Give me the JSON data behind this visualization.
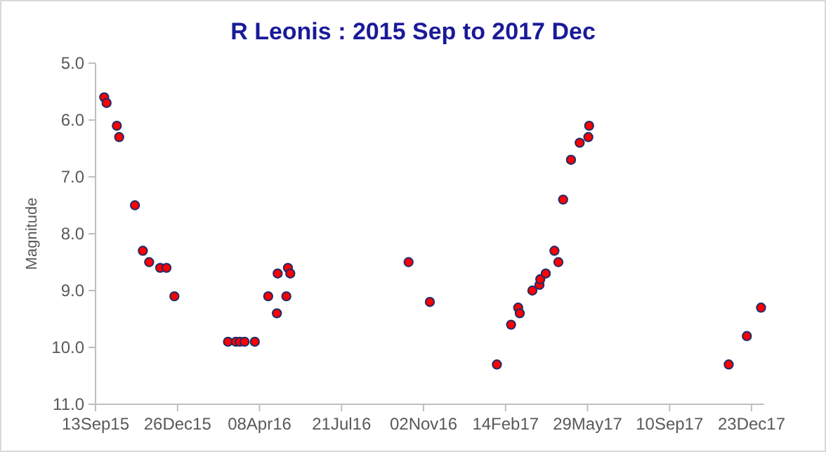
{
  "chart_data": {
    "type": "scatter",
    "title": "R Leonis : 2015 Sep to 2017 Dec",
    "ylabel": "Magnitude",
    "marker": "circle",
    "grid": false,
    "x": [
      "2015-09-24",
      "2015-09-27",
      "2015-10-10",
      "2015-10-13",
      "2015-11-02",
      "2015-11-12",
      "2015-11-20",
      "2015-12-04",
      "2015-12-12",
      "2015-12-22",
      "2016-02-28",
      "2016-03-09",
      "2016-03-14",
      "2016-03-20",
      "2016-04-02",
      "2016-04-19",
      "2016-04-30",
      "2016-05-01",
      "2016-05-12",
      "2016-05-14",
      "2016-05-17",
      "2016-10-14",
      "2016-11-10",
      "2017-02-03",
      "2017-02-21",
      "2017-03-02",
      "2017-03-04",
      "2017-03-20",
      "2017-03-29",
      "2017-03-30",
      "2017-04-06",
      "2017-04-17",
      "2017-04-22",
      "2017-04-28",
      "2017-05-08",
      "2017-05-19",
      "2017-05-30",
      "2017-05-31",
      "2017-11-24",
      "2017-12-17",
      "2018-01-04"
    ],
    "series": [
      {
        "color": "#ff0000",
        "values": [
          5.6,
          5.7,
          6.1,
          6.3,
          7.5,
          8.3,
          8.5,
          8.6,
          8.6,
          9.1,
          9.9,
          9.9,
          9.9,
          9.9,
          9.9,
          9.1,
          9.4,
          8.7,
          9.1,
          8.6,
          8.7,
          8.5,
          9.2,
          10.3,
          9.6,
          9.3,
          9.4,
          9.0,
          8.9,
          8.8,
          8.7,
          8.3,
          8.5,
          7.4,
          6.7,
          6.4,
          6.3,
          6.1,
          10.3,
          9.8,
          9.3
        ]
      }
    ],
    "xlim": [
      "2015-09-13",
      "2018-01-08"
    ],
    "xticks": [
      {
        "value": "2015-09-13",
        "label": "13Sep15"
      },
      {
        "value": "2015-12-26",
        "label": "26Dec15"
      },
      {
        "value": "2016-04-08",
        "label": "08Apr16"
      },
      {
        "value": "2016-07-21",
        "label": "21Jul16"
      },
      {
        "value": "2016-11-02",
        "label": "02Nov16"
      },
      {
        "value": "2017-02-14",
        "label": "14Feb17"
      },
      {
        "value": "2017-05-29",
        "label": "29May17"
      },
      {
        "value": "2017-09-10",
        "label": "10Sep17"
      },
      {
        "value": "2017-12-23",
        "label": "23Dec17"
      }
    ],
    "ylim": [
      11,
      5
    ],
    "yticks": [
      {
        "value": 5,
        "label": "5.0"
      },
      {
        "value": 6,
        "label": "6.0"
      },
      {
        "value": 7,
        "label": "7.0"
      },
      {
        "value": 8,
        "label": "8.0"
      },
      {
        "value": 9,
        "label": "9.0"
      },
      {
        "value": 10,
        "label": "10.0"
      },
      {
        "value": 11,
        "label": "11.0"
      }
    ]
  }
}
